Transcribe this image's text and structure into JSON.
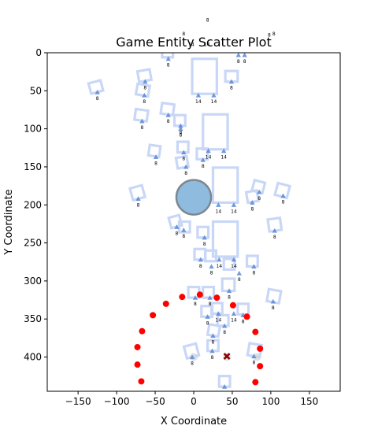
{
  "chart_data": {
    "type": "scatter",
    "title": "Game Entity Scatter Plot",
    "xlabel": "X Coordinate",
    "ylabel": "Y Coordinate",
    "xlim": [
      -190,
      190
    ],
    "ylim": [
      445,
      0
    ],
    "y_axis_inverted": true,
    "grid": false,
    "x_ticks": [
      -150,
      -100,
      -50,
      0,
      50,
      100,
      150
    ],
    "y_ticks": [
      0,
      50,
      100,
      150,
      200,
      250,
      300,
      350,
      400
    ],
    "x_tick_labels": [
      "−150",
      "−100",
      "−50",
      "0",
      "50",
      "100",
      "150"
    ],
    "y_tick_labels": [
      "0",
      "50",
      "100",
      "150",
      "200",
      "250",
      "300",
      "350",
      "400"
    ],
    "colors": {
      "outline": "#c9d7f7",
      "triangle": "#5b87d6",
      "circle_fill": "#8fbbdf",
      "circle_edge": "#7b8892",
      "red_dot": "#ff0000",
      "x_marker": "#8b0000",
      "ghost": "#cfd4dc"
    },
    "outline_boxes": [
      {
        "x": -127,
        "y": 45,
        "w": 16,
        "h": 14,
        "angle": -15
      },
      {
        "x": -64,
        "y": 30,
        "w": 16,
        "h": 14,
        "angle": -10
      },
      {
        "x": -66,
        "y": 49,
        "w": 16,
        "h": 14,
        "angle": 10
      },
      {
        "x": -34,
        "y": 0,
        "w": 14,
        "h": 12,
        "angle": 0
      },
      {
        "x": -68,
        "y": 82,
        "w": 16,
        "h": 14,
        "angle": 8
      },
      {
        "x": -34,
        "y": 74,
        "w": 16,
        "h": 14,
        "angle": 8
      },
      {
        "x": -18,
        "y": 89,
        "w": 14,
        "h": 14,
        "angle": 0
      },
      {
        "x": 49,
        "y": 31,
        "w": 16,
        "h": 14,
        "angle": 0
      },
      {
        "x": 14,
        "y": 31,
        "w": 32,
        "h": 46,
        "angle": 0
      },
      {
        "x": 28,
        "y": 104,
        "w": 32,
        "h": 46,
        "angle": 0
      },
      {
        "x": 41,
        "y": 174,
        "w": 32,
        "h": 46,
        "angle": 0
      },
      {
        "x": 41,
        "y": 245,
        "w": 32,
        "h": 46,
        "angle": 0
      },
      {
        "x": -51,
        "y": 129,
        "w": 14,
        "h": 14,
        "angle": 8
      },
      {
        "x": -14,
        "y": 124,
        "w": 14,
        "h": 14,
        "angle": 0
      },
      {
        "x": 11,
        "y": 133,
        "w": 14,
        "h": 14,
        "angle": 0
      },
      {
        "x": -15,
        "y": 144,
        "w": 14,
        "h": 14,
        "angle": -10
      },
      {
        "x": -73,
        "y": 184,
        "w": 16,
        "h": 16,
        "angle": -15
      },
      {
        "x": 84,
        "y": 176,
        "w": 14,
        "h": 14,
        "angle": 15
      },
      {
        "x": 115,
        "y": 181,
        "w": 16,
        "h": 16,
        "angle": 15
      },
      {
        "x": 76,
        "y": 189,
        "w": 14,
        "h": 14,
        "angle": -10
      },
      {
        "x": -24,
        "y": 222,
        "w": 14,
        "h": 14,
        "angle": -15
      },
      {
        "x": -12,
        "y": 229,
        "w": 14,
        "h": 14,
        "angle": 0
      },
      {
        "x": 105,
        "y": 226,
        "w": 16,
        "h": 16,
        "angle": -8
      },
      {
        "x": 12,
        "y": 236,
        "w": 14,
        "h": 14,
        "angle": 0
      },
      {
        "x": 8,
        "y": 265,
        "w": 14,
        "h": 14,
        "angle": 0
      },
      {
        "x": 22,
        "y": 267,
        "w": 14,
        "h": 14,
        "angle": 0
      },
      {
        "x": 76,
        "y": 274,
        "w": 14,
        "h": 14,
        "angle": 0
      },
      {
        "x": 46,
        "y": 278,
        "w": 14,
        "h": 14,
        "angle": 0
      },
      {
        "x": 45,
        "y": 305,
        "w": 16,
        "h": 16,
        "angle": 0
      },
      {
        "x": 0,
        "y": 315,
        "w": 14,
        "h": 14,
        "angle": 0
      },
      {
        "x": 19,
        "y": 315,
        "w": 14,
        "h": 14,
        "angle": 0
      },
      {
        "x": 104,
        "y": 320,
        "w": 16,
        "h": 16,
        "angle": 10
      },
      {
        "x": 17,
        "y": 340,
        "w": 14,
        "h": 14,
        "angle": 0
      },
      {
        "x": 30,
        "y": 336,
        "w": 14,
        "h": 14,
        "angle": 0
      },
      {
        "x": 38,
        "y": 352,
        "w": 14,
        "h": 14,
        "angle": 0
      },
      {
        "x": 64,
        "y": 337,
        "w": 14,
        "h": 14,
        "angle": 0
      },
      {
        "x": 26,
        "y": 365,
        "w": 14,
        "h": 14,
        "angle": 10
      },
      {
        "x": -3,
        "y": 392,
        "w": 16,
        "h": 16,
        "angle": -15
      },
      {
        "x": 25,
        "y": 385,
        "w": 14,
        "h": 14,
        "angle": 0
      },
      {
        "x": 79,
        "y": 391,
        "w": 16,
        "h": 16,
        "angle": 10
      },
      {
        "x": 40,
        "y": 432,
        "w": 14,
        "h": 14,
        "angle": 0
      }
    ],
    "triangles": [
      {
        "x": -125,
        "y": 52,
        "label": "8"
      },
      {
        "x": -33,
        "y": 8,
        "label": "8"
      },
      {
        "x": 58,
        "y": 3,
        "label": "8"
      },
      {
        "x": 66,
        "y": 3,
        "label": "8"
      },
      {
        "x": -63,
        "y": 38,
        "label": "8"
      },
      {
        "x": 49,
        "y": 38,
        "label": "8"
      },
      {
        "x": -64,
        "y": 56,
        "label": "8"
      },
      {
        "x": 6,
        "y": 56,
        "label": "14"
      },
      {
        "x": 26,
        "y": 56,
        "label": "14"
      },
      {
        "x": -67,
        "y": 90,
        "label": "8"
      },
      {
        "x": -33,
        "y": 82,
        "label": "8"
      },
      {
        "x": -17,
        "y": 96,
        "label": "8"
      },
      {
        "x": -17,
        "y": 100,
        "label": "8"
      },
      {
        "x": -49,
        "y": 137,
        "label": "8"
      },
      {
        "x": -13,
        "y": 131,
        "label": "8"
      },
      {
        "x": 19,
        "y": 129,
        "label": "14"
      },
      {
        "x": 39,
        "y": 129,
        "label": "14"
      },
      {
        "x": 12,
        "y": 141,
        "label": "8"
      },
      {
        "x": -10,
        "y": 150,
        "label": "8"
      },
      {
        "x": -72,
        "y": 192,
        "label": "8"
      },
      {
        "x": 85,
        "y": 183,
        "label": "8"
      },
      {
        "x": 116,
        "y": 188,
        "label": "8"
      },
      {
        "x": 76,
        "y": 197,
        "label": "8"
      },
      {
        "x": 32,
        "y": 200,
        "label": "14"
      },
      {
        "x": 52,
        "y": 200,
        "label": "14"
      },
      {
        "x": -22,
        "y": 229,
        "label": "8"
      },
      {
        "x": -13,
        "y": 233,
        "label": "8"
      },
      {
        "x": 105,
        "y": 234,
        "label": "8"
      },
      {
        "x": 14,
        "y": 243,
        "label": "8"
      },
      {
        "x": 9,
        "y": 272,
        "label": "8"
      },
      {
        "x": 33,
        "y": 272,
        "label": "14"
      },
      {
        "x": 52,
        "y": 272,
        "label": "14"
      },
      {
        "x": 23,
        "y": 281,
        "label": "8"
      },
      {
        "x": 78,
        "y": 281,
        "label": "8"
      },
      {
        "x": 59,
        "y": 290,
        "label": "8"
      },
      {
        "x": 46,
        "y": 313,
        "label": "8"
      },
      {
        "x": 2,
        "y": 322,
        "label": "8"
      },
      {
        "x": 21,
        "y": 322,
        "label": "8"
      },
      {
        "x": 103,
        "y": 327,
        "label": "8"
      },
      {
        "x": 32,
        "y": 343,
        "label": "14"
      },
      {
        "x": 52,
        "y": 343,
        "label": "14"
      },
      {
        "x": 18,
        "y": 347,
        "label": "8"
      },
      {
        "x": 40,
        "y": 359,
        "label": "8"
      },
      {
        "x": 64,
        "y": 345,
        "label": "8"
      },
      {
        "x": 25,
        "y": 372,
        "label": "8"
      },
      {
        "x": 24,
        "y": 392,
        "label": "8"
      },
      {
        "x": -2,
        "y": 400,
        "label": "8"
      },
      {
        "x": 78,
        "y": 399,
        "label": "8"
      },
      {
        "x": 40,
        "y": 439,
        "label": "8"
      }
    ],
    "red_points": [
      {
        "x": -36,
        "y": 330
      },
      {
        "x": -15,
        "y": 321
      },
      {
        "x": 8,
        "y": 318
      },
      {
        "x": 30,
        "y": 322
      },
      {
        "x": 51,
        "y": 332
      },
      {
        "x": -53,
        "y": 345
      },
      {
        "x": 69,
        "y": 347
      },
      {
        "x": -67,
        "y": 366
      },
      {
        "x": 80,
        "y": 367
      },
      {
        "x": -73,
        "y": 387
      },
      {
        "x": 86,
        "y": 389
      },
      {
        "x": -73,
        "y": 410
      },
      {
        "x": 86,
        "y": 412
      },
      {
        "x": -68,
        "y": 432
      },
      {
        "x": 80,
        "y": 433
      }
    ],
    "player": {
      "x": 0,
      "y": 190,
      "radius": 18
    },
    "x_marker": {
      "x": 43,
      "y": 399
    },
    "ghost_circles": [
      {
        "x": 0,
        "y": 400,
        "r": 5
      },
      {
        "x": 43,
        "y": 400,
        "r": 5
      },
      {
        "x": 82,
        "y": 400,
        "r": 5
      }
    ],
    "overflow_labels": [
      {
        "x": 18,
        "y": -41,
        "label": "8"
      },
      {
        "x": -13,
        "y": -23,
        "label": "8"
      },
      {
        "x": -3,
        "y": -9,
        "label": "14"
      },
      {
        "x": 17,
        "y": -9,
        "label": "14"
      },
      {
        "x": 98,
        "y": -21,
        "label": "8"
      },
      {
        "x": 104,
        "y": -23,
        "label": "8"
      }
    ]
  }
}
